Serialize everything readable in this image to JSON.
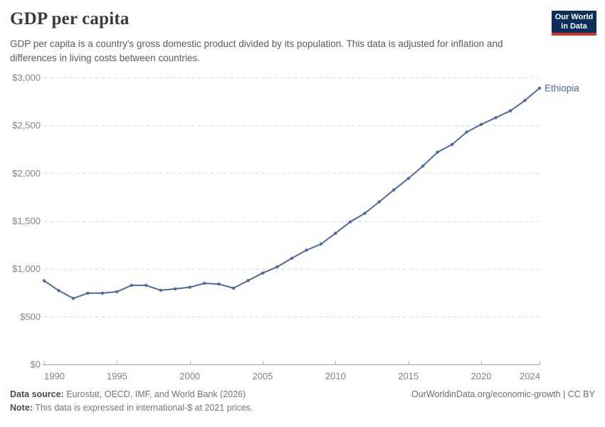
{
  "header": {
    "title": "GDP per capita",
    "subtitle": "GDP per capita is a country's gross domestic product divided by its population. This data is adjusted for inflation and differences in living costs between countries.",
    "logo": {
      "line1": "Our World",
      "line2": "in Data"
    }
  },
  "chart_data": {
    "type": "line",
    "title": "GDP per capita",
    "series": [
      {
        "name": "Ethiopia",
        "x": [
          1990,
          1991,
          1992,
          1993,
          1994,
          1995,
          1996,
          1997,
          1998,
          1999,
          2000,
          2001,
          2002,
          2003,
          2004,
          2005,
          2006,
          2007,
          2008,
          2009,
          2010,
          2011,
          2012,
          2013,
          2014,
          2015,
          2016,
          2017,
          2018,
          2019,
          2020,
          2021,
          2022,
          2023,
          2024
        ],
        "values": [
          875,
          772,
          690,
          745,
          745,
          760,
          827,
          827,
          775,
          790,
          807,
          848,
          840,
          797,
          877,
          955,
          1020,
          1110,
          1195,
          1258,
          1372,
          1490,
          1580,
          1700,
          1825,
          1945,
          2075,
          2220,
          2300,
          2430,
          2510,
          2580,
          2652,
          2760,
          2890
        ]
      }
    ],
    "xlabel": "",
    "ylabel": "",
    "xlim": [
      1990,
      2024
    ],
    "ylim": [
      0,
      3000
    ],
    "x_ticks": {
      "values": [
        1990,
        1995,
        2000,
        2005,
        2010,
        2015,
        2020,
        2024
      ],
      "labels": [
        "1990",
        "1995",
        "2000",
        "2005",
        "2010",
        "2015",
        "2020",
        "2024"
      ]
    },
    "y_ticks": {
      "values": [
        0,
        500,
        1000,
        1500,
        2000,
        2500,
        3000
      ],
      "labels": [
        "$0",
        "$500",
        "$1,000",
        "$1,500",
        "$2,000",
        "$2,500",
        "$3,000"
      ]
    },
    "grid": "horizontal-dashed",
    "legend_position": "end-of-line-label",
    "end_label": "Ethiopia",
    "units": "international-$ at 2021 prices",
    "colors": {
      "line": "#4c6a9d",
      "end_label": "#4c6a9d",
      "gridline": "#dadada",
      "axis_line": "#a3a3a3",
      "tick_mark": "#b3b3b3",
      "tick_label": "#838383"
    }
  },
  "footer": {
    "source_label": "Data source:",
    "source_text": "Eurostat, OECD, IMF, and World Bank (2026)",
    "note_label": "Note:",
    "note_text": "This data is expressed in international-$ at 2021 prices.",
    "attribution": "OurWorldinData.org/economic-growth | CC BY"
  }
}
